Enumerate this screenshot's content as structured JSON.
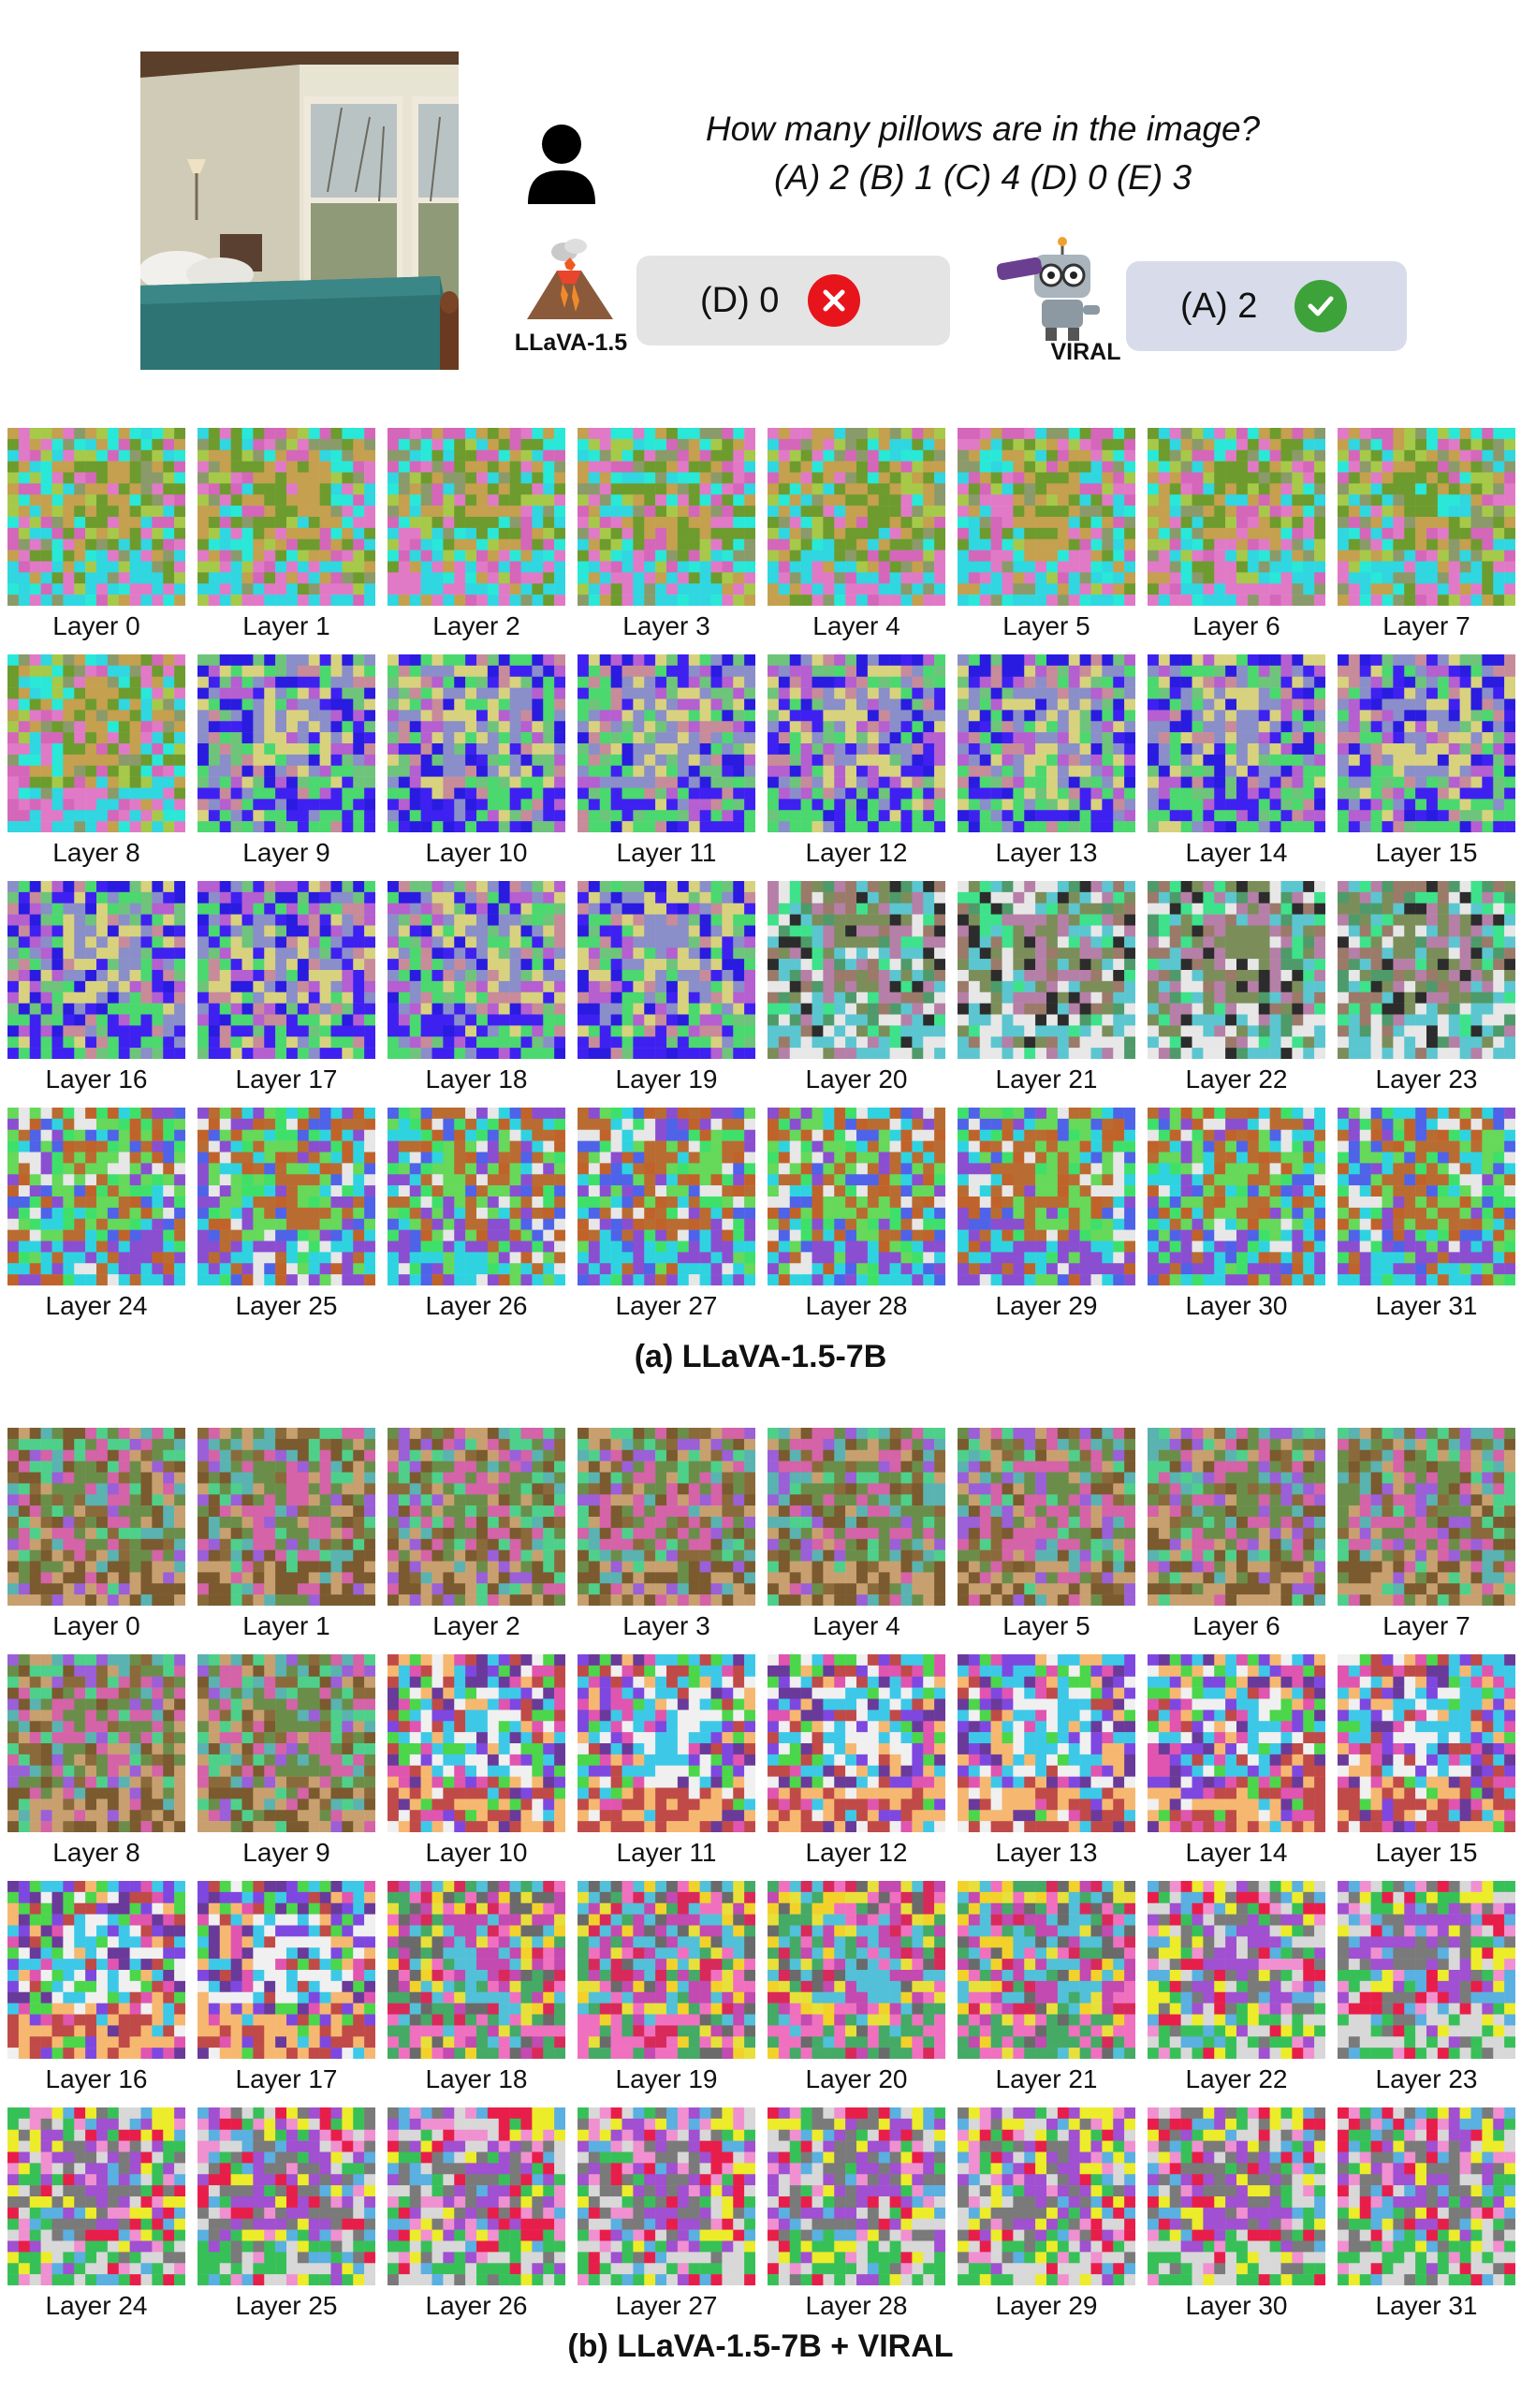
{
  "question": {
    "line1": "How many pillows are in the image?",
    "line2": "(A) 2 (B) 1 (C) 4 (D) 0 (E) 3"
  },
  "baseline": {
    "model_name": "LLaVA-1.5",
    "answer": "(D) 0",
    "result": "incorrect",
    "mark_color": "#e8141c"
  },
  "viral": {
    "model_name": "VIRAL",
    "answer": "(A) 2",
    "result": "correct",
    "mark_color": "#3ea23a"
  },
  "panels": [
    {
      "caption": "(a) LLaVA-1.5-7B",
      "palettes": [
        [
          "#29e8d8",
          "#d467b9",
          "#8b9a6a",
          "#6e9b2e",
          "#c4a04f",
          "#a6c94a",
          "#e07ac7",
          "#30d6e0"
        ],
        [
          "#2a1be0",
          "#6ec47a",
          "#c88b9a",
          "#8a8ec9",
          "#d8d27e",
          "#b55fd0",
          "#3e21f0",
          "#4bd86f"
        ],
        [
          "#4e9a6a",
          "#9b7a6a",
          "#3ee28a",
          "#b67fa8",
          "#7b8e5a",
          "#2c2c2c",
          "#e7e7e7",
          "#5bc6d0"
        ],
        [
          "#3fe06a",
          "#4f63e8",
          "#c0632b",
          "#b96c32",
          "#66d85a",
          "#e7e7e7",
          "#8a4fd0",
          "#2fd3e0"
        ]
      ],
      "layers": [
        {
          "label": "Layer 0",
          "style": 0
        },
        {
          "label": "Layer 1",
          "style": 0
        },
        {
          "label": "Layer 2",
          "style": 0
        },
        {
          "label": "Layer 3",
          "style": 0
        },
        {
          "label": "Layer 4",
          "style": 0
        },
        {
          "label": "Layer 5",
          "style": 0
        },
        {
          "label": "Layer 6",
          "style": 0
        },
        {
          "label": "Layer 7",
          "style": 0
        },
        {
          "label": "Layer 8",
          "style": 0
        },
        {
          "label": "Layer 9",
          "style": 1
        },
        {
          "label": "Layer 10",
          "style": 1
        },
        {
          "label": "Layer 11",
          "style": 1
        },
        {
          "label": "Layer 12",
          "style": 1
        },
        {
          "label": "Layer 13",
          "style": 1
        },
        {
          "label": "Layer 14",
          "style": 1
        },
        {
          "label": "Layer 15",
          "style": 1
        },
        {
          "label": "Layer 16",
          "style": 1
        },
        {
          "label": "Layer 17",
          "style": 1
        },
        {
          "label": "Layer 18",
          "style": 1
        },
        {
          "label": "Layer 19",
          "style": 1
        },
        {
          "label": "Layer 20",
          "style": 2
        },
        {
          "label": "Layer 21",
          "style": 2
        },
        {
          "label": "Layer 22",
          "style": 2
        },
        {
          "label": "Layer 23",
          "style": 2
        },
        {
          "label": "Layer 24",
          "style": 3
        },
        {
          "label": "Layer 25",
          "style": 3
        },
        {
          "label": "Layer 26",
          "style": 3
        },
        {
          "label": "Layer 27",
          "style": 3
        },
        {
          "label": "Layer 28",
          "style": 3
        },
        {
          "label": "Layer 29",
          "style": 3
        },
        {
          "label": "Layer 30",
          "style": 3
        },
        {
          "label": "Layer 31",
          "style": 3
        }
      ]
    },
    {
      "caption": "(b) LLaVA-1.5-7B + VIRAL",
      "palettes": [
        [
          "#4fd08a",
          "#8a6a3a",
          "#9b5fd8",
          "#6a8e4a",
          "#d463a8",
          "#5ab3b0",
          "#7a5a2e",
          "#c8a070"
        ],
        [
          "#7e48e0",
          "#4cd64a",
          "#e055b0",
          "#f0f0f0",
          "#3ec8e8",
          "#6a3a9a",
          "#c04a48",
          "#f6b870"
        ],
        [
          "#f2d22a",
          "#d82a5a",
          "#6a6a6a",
          "#52c0d8",
          "#c24ab0",
          "#e8e03a",
          "#44aa66",
          "#f070c0"
        ],
        [
          "#e81e4a",
          "#5ab0e0",
          "#ecec2a",
          "#7a7a7a",
          "#a050d0",
          "#f090d0",
          "#38c058",
          "#d8d8d8"
        ]
      ],
      "layers": [
        {
          "label": "Layer 0",
          "style": 0
        },
        {
          "label": "Layer 1",
          "style": 0
        },
        {
          "label": "Layer 2",
          "style": 0
        },
        {
          "label": "Layer 3",
          "style": 0
        },
        {
          "label": "Layer 4",
          "style": 0
        },
        {
          "label": "Layer 5",
          "style": 0
        },
        {
          "label": "Layer 6",
          "style": 0
        },
        {
          "label": "Layer 7",
          "style": 0
        },
        {
          "label": "Layer 8",
          "style": 0
        },
        {
          "label": "Layer 9",
          "style": 0
        },
        {
          "label": "Layer 10",
          "style": 1
        },
        {
          "label": "Layer 11",
          "style": 1
        },
        {
          "label": "Layer 12",
          "style": 1
        },
        {
          "label": "Layer 13",
          "style": 1
        },
        {
          "label": "Layer 14",
          "style": 1
        },
        {
          "label": "Layer 15",
          "style": 1
        },
        {
          "label": "Layer 16",
          "style": 1
        },
        {
          "label": "Layer 17",
          "style": 1
        },
        {
          "label": "Layer 18",
          "style": 2
        },
        {
          "label": "Layer 19",
          "style": 2
        },
        {
          "label": "Layer 20",
          "style": 2
        },
        {
          "label": "Layer 21",
          "style": 2
        },
        {
          "label": "Layer 22",
          "style": 3
        },
        {
          "label": "Layer 23",
          "style": 3
        },
        {
          "label": "Layer 24",
          "style": 3
        },
        {
          "label": "Layer 25",
          "style": 3
        },
        {
          "label": "Layer 26",
          "style": 3
        },
        {
          "label": "Layer 27",
          "style": 3
        },
        {
          "label": "Layer 28",
          "style": 3
        },
        {
          "label": "Layer 29",
          "style": 3
        },
        {
          "label": "Layer 30",
          "style": 3
        },
        {
          "label": "Layer 31",
          "style": 3
        }
      ]
    }
  ]
}
